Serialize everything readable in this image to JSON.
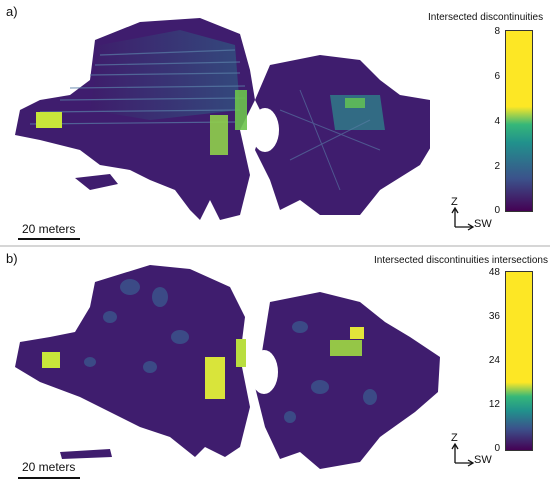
{
  "panels": [
    {
      "label": "a)",
      "colorbar": {
        "title": "Intersected discontinuities",
        "ticks": [
          "8",
          "6",
          "4",
          "2",
          "0"
        ],
        "min": 0,
        "max": 8
      },
      "scale": {
        "label": "20 meters"
      },
      "axes": {
        "up": "Z",
        "right": "SW"
      }
    },
    {
      "label": "b)",
      "colorbar": {
        "title": "Intersected discontinuities intersections",
        "ticks": [
          "48",
          "36",
          "24",
          "12",
          "0"
        ],
        "min": 0,
        "max": 48
      },
      "scale": {
        "label": "20 meters"
      },
      "axes": {
        "up": "Z",
        "right": "SW"
      }
    }
  ],
  "colors": {
    "background_map": "#3b1a63",
    "low": "#440154",
    "mid": "#21918c",
    "high": "#fde725"
  }
}
